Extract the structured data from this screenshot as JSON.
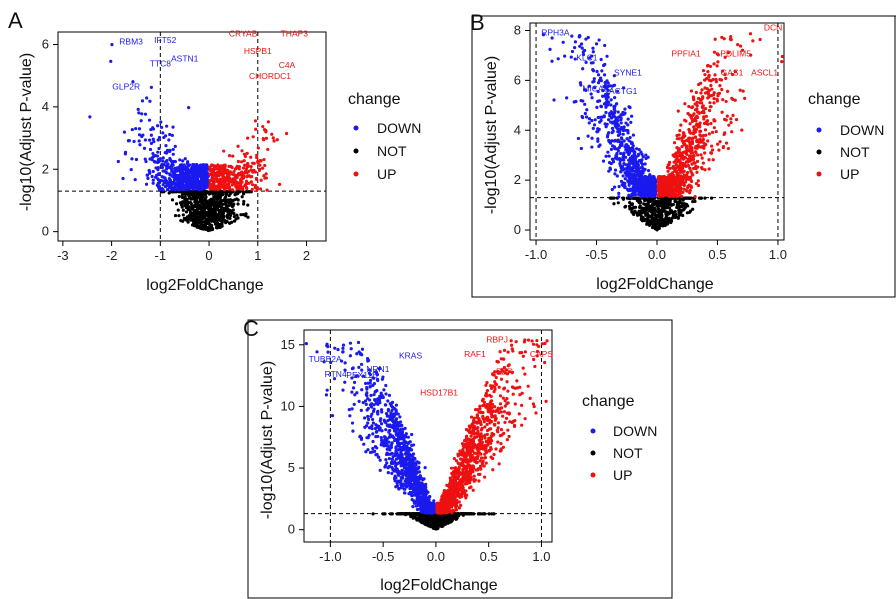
{
  "colors": {
    "down": "#1a1aee",
    "not": "#000000",
    "up": "#ee1111"
  },
  "chart_data": [
    {
      "type": "scatter",
      "panel": "A",
      "xlabel": "log2FoldChange",
      "ylabel": "-log10(Adjust P-value)",
      "xlim": [
        -3.1,
        2.4
      ],
      "ylim": [
        -0.3,
        6.4
      ],
      "xticks": [
        -3,
        -2,
        -1,
        0,
        1,
        2
      ],
      "xtick_labels": [
        "-3",
        "-2",
        "-1",
        "0",
        "1",
        "2"
      ],
      "yticks": [
        0,
        2,
        4,
        6
      ],
      "ytick_labels": [
        "0",
        "2",
        "4",
        "6"
      ],
      "vlines": [
        -1,
        1
      ],
      "hline": 1.3,
      "legend": {
        "title": "change",
        "entries": [
          "DOWN",
          "NOT",
          "UP"
        ]
      },
      "labels": [
        {
          "text": "RBM3",
          "x": -1.6,
          "y": 6.0,
          "series": "down"
        },
        {
          "text": "IFT52",
          "x": -0.9,
          "y": 6.05,
          "series": "down"
        },
        {
          "text": "TTC8",
          "x": -1.0,
          "y": 5.3,
          "series": "down"
        },
        {
          "text": "ASTN1",
          "x": -0.5,
          "y": 5.45,
          "series": "down"
        },
        {
          "text": "GLP2R",
          "x": -1.7,
          "y": 4.55,
          "series": "down"
        },
        {
          "text": "CRYAB",
          "x": 0.7,
          "y": 6.25,
          "series": "up"
        },
        {
          "text": "THAP3",
          "x": 1.75,
          "y": 6.25,
          "series": "up"
        },
        {
          "text": "HSPB1",
          "x": 1.0,
          "y": 5.7,
          "series": "up"
        },
        {
          "text": "C4A",
          "x": 1.6,
          "y": 5.25,
          "series": "up"
        },
        {
          "text": "CHORDC1",
          "x": 1.25,
          "y": 4.9,
          "series": "up"
        }
      ]
    },
    {
      "type": "scatter",
      "panel": "B",
      "xlabel": "log2FoldChange",
      "ylabel": "-log10(Adjust P-value)",
      "xlim": [
        -1.05,
        1.05
      ],
      "ylim": [
        -0.4,
        8.3
      ],
      "xticks": [
        -1.0,
        -0.5,
        0.0,
        0.5,
        1.0
      ],
      "xtick_labels": [
        "-1.0",
        "-0.5",
        "0.0",
        "0.5",
        "1.0"
      ],
      "yticks": [
        0,
        2,
        4,
        6,
        8
      ],
      "ytick_labels": [
        "0",
        "2",
        "4",
        "6",
        "8"
      ],
      "vlines": [
        -1,
        1
      ],
      "hline": 1.3,
      "legend": {
        "title": "change",
        "entries": [
          "DOWN",
          "NOT",
          "UP"
        ]
      },
      "labels": [
        {
          "text": "RPH3A",
          "x": -0.84,
          "y": 7.8,
          "series": "down"
        },
        {
          "text": "KLC1",
          "x": -0.58,
          "y": 6.8,
          "series": "down"
        },
        {
          "text": "SYNE1",
          "x": -0.24,
          "y": 6.2,
          "series": "down"
        },
        {
          "text": "MICAL2",
          "x": -0.49,
          "y": 5.55,
          "series": "down"
        },
        {
          "text": "ACTG1",
          "x": -0.28,
          "y": 5.45,
          "series": "down"
        },
        {
          "text": "DCN",
          "x": 0.96,
          "y": 8.0,
          "series": "up"
        },
        {
          "text": "PPFIA1",
          "x": 0.24,
          "y": 6.95,
          "series": "up"
        },
        {
          "text": "PDLIM5",
          "x": 0.65,
          "y": 6.95,
          "series": "up"
        },
        {
          "text": "GAS1",
          "x": 0.62,
          "y": 6.2,
          "series": "up"
        },
        {
          "text": "ASCL1",
          "x": 0.89,
          "y": 6.2,
          "series": "up"
        }
      ]
    },
    {
      "type": "scatter",
      "panel": "C",
      "xlabel": "log2FoldChange",
      "ylabel": "-log10(Adjust P-value)",
      "xlim": [
        -1.25,
        1.1
      ],
      "ylim": [
        -1.0,
        16.2
      ],
      "xticks": [
        -1.0,
        -0.5,
        0.0,
        0.5,
        1.0
      ],
      "xtick_labels": [
        "-1.0",
        "-0.5",
        "0.0",
        "0.5",
        "1.0"
      ],
      "yticks": [
        0,
        5,
        10,
        15
      ],
      "ytick_labels": [
        "0",
        "5",
        "10",
        "15"
      ],
      "vlines": [
        -1,
        1
      ],
      "hline": 1.3,
      "legend": {
        "title": "change",
        "entries": [
          "DOWN",
          "NOT",
          "UP"
        ]
      },
      "labels": [
        {
          "text": "TUBB2A",
          "x": -1.05,
          "y": 13.6,
          "series": "down"
        },
        {
          "text": "RTN4",
          "x": -0.95,
          "y": 12.4,
          "series": "down"
        },
        {
          "text": "KRAS",
          "x": -0.24,
          "y": 13.9,
          "series": "down"
        },
        {
          "text": "NRN1",
          "x": -0.55,
          "y": 12.8,
          "series": "down"
        },
        {
          "text": "PEX11B",
          "x": -0.7,
          "y": 12.3,
          "series": "down"
        },
        {
          "text": "RBPJ",
          "x": 0.58,
          "y": 15.2,
          "series": "up"
        },
        {
          "text": "CAPS",
          "x": 1.0,
          "y": 14.0,
          "series": "up"
        },
        {
          "text": "RAF1",
          "x": 0.37,
          "y": 14.0,
          "series": "up"
        },
        {
          "text": "EZR",
          "x": 0.65,
          "y": 12.6,
          "series": "up"
        },
        {
          "text": "HSD17B1",
          "x": 0.03,
          "y": 10.9,
          "series": "up"
        }
      ]
    }
  ]
}
